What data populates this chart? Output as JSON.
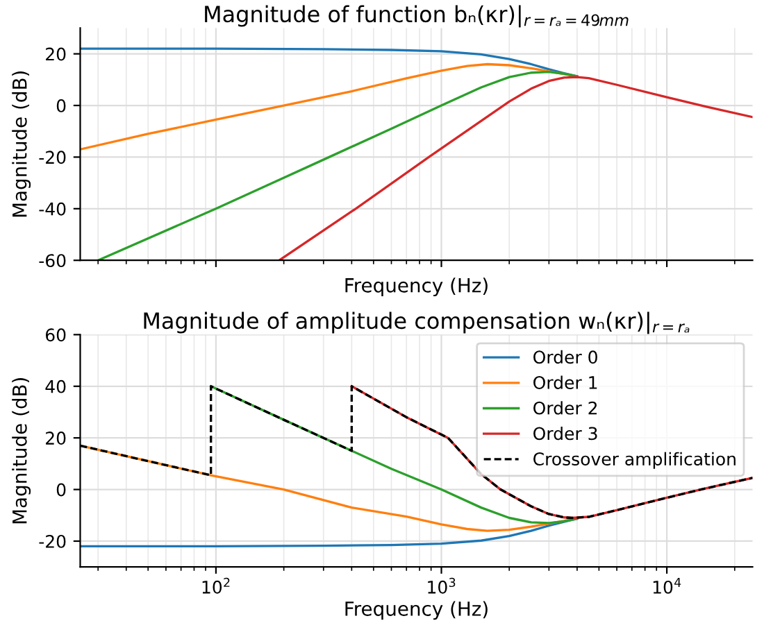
{
  "chart_data": [
    {
      "type": "line",
      "title": "Magnitude of function bₙ(κr)|$_{r=rₐ=49mm}$",
      "xlabel": "Frequency (Hz)",
      "ylabel": "Magnitude (dB)",
      "log": "x",
      "grid": true,
      "tick_labels": "y",
      "xlim": [
        25,
        24000
      ],
      "xticks": [
        {
          "value": 100,
          "label": null
        },
        {
          "value": 1000,
          "label": null
        },
        {
          "value": 10000,
          "label": null
        }
      ],
      "ylim": [
        -60,
        30
      ],
      "yticks": [
        -60,
        -40,
        -20,
        0,
        20
      ],
      "series": [
        {
          "color": "#1f77b4",
          "x": [
            25,
            100,
            300,
            600,
            1000,
            1500,
            2000,
            2500,
            3000,
            3500,
            4000
          ],
          "values": [
            22,
            22,
            21.8,
            21.5,
            21,
            19.8,
            18,
            16,
            14,
            12.5,
            11.3
          ]
        },
        {
          "color": "#ff7f0e",
          "x": [
            25,
            50,
            100,
            200,
            400,
            700,
            1000,
            1300,
            1600,
            2000,
            2500,
            3000,
            3500,
            4000
          ],
          "values": [
            -17,
            -11,
            -5.5,
            0,
            5.5,
            10.5,
            13.5,
            15.3,
            16,
            15.6,
            14.4,
            13.2,
            12.2,
            11.2
          ]
        },
        {
          "color": "#2ca02c",
          "x": [
            30,
            100,
            300,
            600,
            1000,
            1500,
            2000,
            2500,
            3000,
            3500,
            4000
          ],
          "values": [
            -60,
            -40,
            -21,
            -9,
            0,
            7,
            11,
            12.7,
            13,
            12.3,
            11.3
          ]
        },
        {
          "color": "#d62728",
          "x": [
            191,
            417,
            880,
            1500,
            2000,
            2500,
            3000,
            3500,
            4000,
            4500,
            6000,
            10000,
            15000,
            24000
          ],
          "values": [
            -60,
            -40,
            -20,
            -6,
            1.5,
            6.5,
            9.5,
            10.8,
            11,
            10.6,
            8,
            3.2,
            -0.5,
            -4.5
          ]
        }
      ]
    },
    {
      "type": "line",
      "title": "Magnitude of amplitude compensation wₙ(κr)|$_{r=rₐ}$",
      "xlabel": "Frequency (Hz)",
      "ylabel": "Magnitude (dB)",
      "log": "x",
      "grid": true,
      "legend": "top right",
      "xlim": [
        25,
        24000
      ],
      "xticks": [
        {
          "value": 100,
          "label": "10$^{2}$"
        },
        {
          "value": 1000,
          "label": "10$^{3}$"
        },
        {
          "value": 10000,
          "label": "10$^{4}$"
        }
      ],
      "ylim": [
        -30,
        60
      ],
      "yticks": [
        -20,
        0,
        20,
        40,
        60
      ],
      "series": [
        {
          "name": "Order 0",
          "color": "#1f77b4",
          "x": [
            25,
            100,
            300,
            600,
            1000,
            1500,
            2000,
            2500,
            3000,
            3500,
            4000
          ],
          "values": [
            -22,
            -22,
            -21.8,
            -21.5,
            -21,
            -19.8,
            -18,
            -16,
            -14,
            -12.5,
            -11.3
          ]
        },
        {
          "name": "Order 1",
          "color": "#ff7f0e",
          "x": [
            25,
            50,
            95,
            200,
            400,
            700,
            1000,
            1300,
            1600,
            2000,
            2500,
            3000,
            3500,
            4000
          ],
          "values": [
            17,
            11,
            5.5,
            0,
            -7,
            -10.5,
            -13.5,
            -15.3,
            -16,
            -15.6,
            -14.4,
            -13.2,
            -12.2,
            -11.2
          ]
        },
        {
          "name": "Order 2",
          "color": "#2ca02c",
          "x": [
            95,
            200,
            400,
            600,
            1000,
            1500,
            2000,
            2500,
            3000,
            3500,
            4000
          ],
          "values": [
            40,
            27,
            15,
            8,
            0,
            -7,
            -11,
            -12.7,
            -13,
            -12.3,
            -11.3
          ]
        },
        {
          "name": "Order 3",
          "color": "#d62728",
          "x": [
            400,
            700,
            1070,
            1500,
            1830,
            2500,
            3000,
            3500,
            3800,
            4500,
            6000,
            10000,
            15000,
            24000
          ],
          "values": [
            40,
            28,
            20,
            6,
            0,
            -6.5,
            -9.5,
            -10.8,
            -11,
            -10.6,
            -8,
            -3.2,
            0.5,
            4.5
          ]
        },
        {
          "name": "Crossover amplification",
          "color": "#000000",
          "line_style": "dashed",
          "x": [
            25,
            50,
            95,
            95,
            200,
            400,
            400,
            700,
            1070,
            1500,
            1830,
            2500,
            3000,
            3500,
            3800,
            4500,
            6000,
            10000,
            15000,
            24000
          ],
          "values": [
            17,
            11,
            5.5,
            40,
            27,
            15,
            40,
            28,
            20,
            6,
            0,
            -6.5,
            -9.5,
            -10.8,
            -11,
            -10.6,
            -8,
            -3.2,
            0.5,
            4.5
          ]
        }
      ]
    }
  ]
}
